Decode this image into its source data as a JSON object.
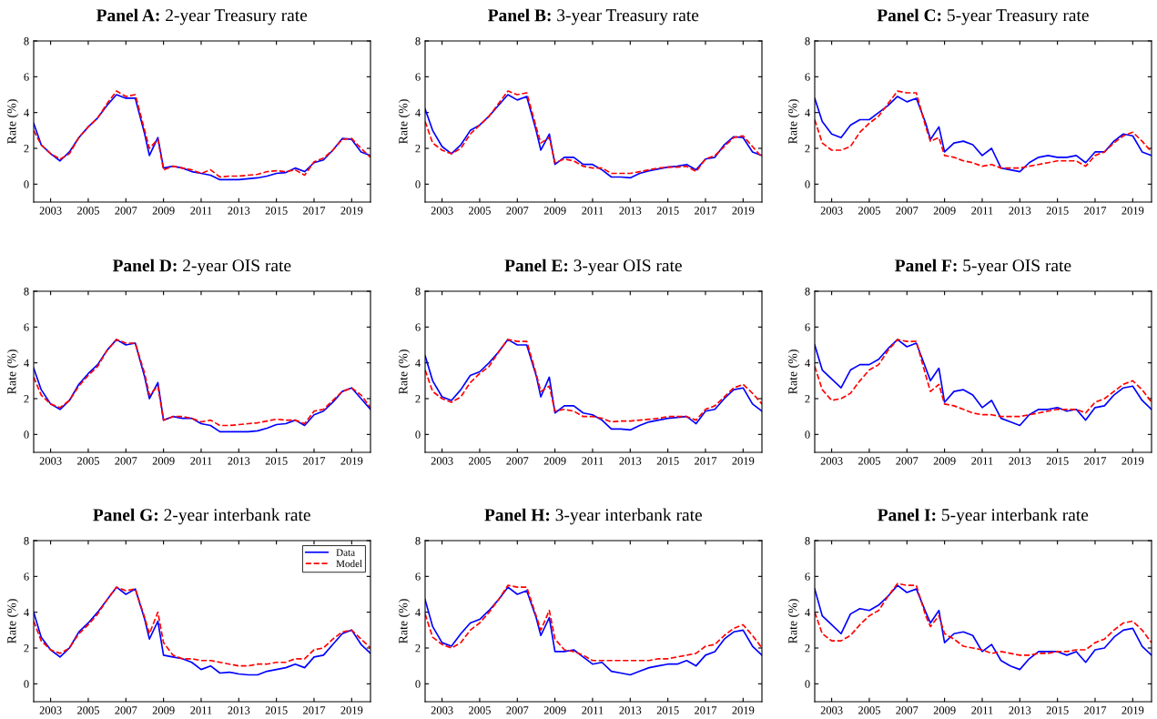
{
  "chart_data": [
    {
      "type": "line",
      "title": "Panel A: 2-year Treasury rate",
      "ylabel": "Rate (%)",
      "xlim": [
        2002.1,
        2020.0
      ],
      "xticks": [
        2003,
        2005,
        2007,
        2009,
        2011,
        2013,
        2015,
        2017,
        2019
      ],
      "ylim": [
        -1,
        8
      ],
      "yticks": [
        0,
        2,
        4,
        6,
        8
      ],
      "grid": false,
      "legend": false,
      "x": [
        2002.1,
        2002.5,
        2003,
        2003.5,
        2004,
        2004.5,
        2005,
        2005.5,
        2006,
        2006.5,
        2007,
        2007.5,
        2008,
        2008.25,
        2008.7,
        2009,
        2009.5,
        2010,
        2010.5,
        2011,
        2011.5,
        2012,
        2012.5,
        2013,
        2013.5,
        2014,
        2014.5,
        2015,
        2015.5,
        2016,
        2016.5,
        2017,
        2017.5,
        2018,
        2018.5,
        2019,
        2019.5,
        2020
      ],
      "series": [
        {
          "color": "#0000ff",
          "line_style": "solid",
          "values": [
            3.4,
            2.2,
            1.7,
            1.3,
            1.8,
            2.6,
            3.2,
            3.7,
            4.4,
            5.0,
            4.8,
            4.8,
            2.8,
            1.6,
            2.6,
            0.9,
            1.0,
            0.9,
            0.7,
            0.6,
            0.5,
            0.25,
            0.25,
            0.25,
            0.3,
            0.35,
            0.45,
            0.6,
            0.65,
            0.9,
            0.7,
            1.2,
            1.35,
            1.9,
            2.55,
            2.5,
            1.8,
            1.6
          ]
        },
        {
          "color": "#ff0000",
          "line_style": "dashed",
          "values": [
            3.0,
            2.2,
            1.7,
            1.4,
            1.7,
            2.6,
            3.2,
            3.7,
            4.5,
            5.2,
            4.9,
            5.0,
            3.0,
            2.0,
            2.5,
            0.8,
            1.0,
            0.9,
            0.8,
            0.6,
            0.8,
            0.4,
            0.45,
            0.45,
            0.5,
            0.55,
            0.7,
            0.75,
            0.7,
            0.8,
            0.5,
            1.25,
            1.45,
            1.9,
            2.5,
            2.55,
            2.0,
            1.5
          ]
        }
      ]
    },
    {
      "type": "line",
      "title": "Panel B: 3-year Treasury rate",
      "ylabel": "Rate (%)",
      "xlim": [
        2002.1,
        2020.0
      ],
      "xticks": [
        2003,
        2005,
        2007,
        2009,
        2011,
        2013,
        2015,
        2017,
        2019
      ],
      "ylim": [
        -1,
        8
      ],
      "yticks": [
        0,
        2,
        4,
        6,
        8
      ],
      "grid": false,
      "legend": false,
      "x": [
        2002.1,
        2002.5,
        2003,
        2003.5,
        2004,
        2004.5,
        2005,
        2005.5,
        2006,
        2006.5,
        2007,
        2007.5,
        2008,
        2008.25,
        2008.7,
        2009,
        2009.5,
        2010,
        2010.5,
        2011,
        2011.5,
        2012,
        2012.5,
        2013,
        2013.5,
        2014,
        2014.5,
        2015,
        2015.5,
        2016,
        2016.5,
        2017,
        2017.5,
        2018,
        2018.5,
        2019,
        2019.5,
        2020
      ],
      "series": [
        {
          "color": "#0000ff",
          "line_style": "solid",
          "values": [
            4.2,
            3.0,
            2.1,
            1.7,
            2.2,
            3.0,
            3.3,
            3.8,
            4.4,
            5.0,
            4.7,
            4.9,
            3.0,
            1.9,
            2.8,
            1.1,
            1.5,
            1.5,
            1.1,
            1.1,
            0.8,
            0.4,
            0.4,
            0.35,
            0.6,
            0.75,
            0.85,
            0.95,
            1.0,
            1.1,
            0.8,
            1.4,
            1.5,
            2.2,
            2.65,
            2.6,
            1.8,
            1.6
          ]
        },
        {
          "color": "#ff0000",
          "line_style": "dashed",
          "values": [
            3.5,
            2.3,
            1.9,
            1.7,
            2.0,
            2.8,
            3.3,
            3.8,
            4.5,
            5.2,
            5.0,
            5.1,
            3.2,
            2.3,
            2.6,
            1.2,
            1.4,
            1.3,
            1.0,
            0.9,
            0.9,
            0.6,
            0.6,
            0.6,
            0.7,
            0.8,
            0.9,
            0.95,
            0.95,
            1.0,
            0.7,
            1.4,
            1.6,
            2.1,
            2.6,
            2.7,
            2.1,
            1.5
          ]
        }
      ]
    },
    {
      "type": "line",
      "title": "Panel C: 5-year Treasury rate",
      "ylabel": "Rate (%)",
      "xlim": [
        2002.1,
        2020.0
      ],
      "xticks": [
        2003,
        2005,
        2007,
        2009,
        2011,
        2013,
        2015,
        2017,
        2019
      ],
      "ylim": [
        -1,
        8
      ],
      "yticks": [
        0,
        2,
        4,
        6,
        8
      ],
      "grid": false,
      "legend": false,
      "x": [
        2002.1,
        2002.5,
        2003,
        2003.5,
        2004,
        2004.5,
        2005,
        2005.5,
        2006,
        2006.5,
        2007,
        2007.5,
        2008,
        2008.25,
        2008.7,
        2009,
        2009.5,
        2010,
        2010.5,
        2011,
        2011.5,
        2012,
        2012.5,
        2013,
        2013.5,
        2014,
        2014.5,
        2015,
        2015.5,
        2016,
        2016.5,
        2017,
        2017.5,
        2018,
        2018.5,
        2019,
        2019.5,
        2020
      ],
      "series": [
        {
          "color": "#0000ff",
          "line_style": "solid",
          "values": [
            4.8,
            3.5,
            2.8,
            2.6,
            3.3,
            3.6,
            3.6,
            4.0,
            4.4,
            4.9,
            4.6,
            4.8,
            3.4,
            2.5,
            3.2,
            1.8,
            2.3,
            2.4,
            2.2,
            1.6,
            2.0,
            0.9,
            0.8,
            0.7,
            1.2,
            1.5,
            1.6,
            1.5,
            1.5,
            1.6,
            1.2,
            1.8,
            1.8,
            2.4,
            2.8,
            2.7,
            1.8,
            1.6
          ]
        },
        {
          "color": "#ff0000",
          "line_style": "dashed",
          "values": [
            3.6,
            2.3,
            1.9,
            1.9,
            2.1,
            2.9,
            3.4,
            3.8,
            4.5,
            5.2,
            5.1,
            5.1,
            3.2,
            2.4,
            2.6,
            1.6,
            1.5,
            1.3,
            1.2,
            1.0,
            1.1,
            0.9,
            0.9,
            0.9,
            1.0,
            1.1,
            1.2,
            1.3,
            1.3,
            1.3,
            1.0,
            1.6,
            1.8,
            2.3,
            2.7,
            2.9,
            2.4,
            1.8
          ]
        }
      ]
    },
    {
      "type": "line",
      "title": "Panel D: 2-year OIS rate",
      "ylabel": "Rate (%)",
      "xlim": [
        2002.1,
        2020.0
      ],
      "xticks": [
        2003,
        2005,
        2007,
        2009,
        2011,
        2013,
        2015,
        2017,
        2019
      ],
      "ylim": [
        -1,
        8
      ],
      "yticks": [
        0,
        2,
        4,
        6,
        8
      ],
      "grid": false,
      "legend": false,
      "x": [
        2002.1,
        2002.5,
        2003,
        2003.5,
        2004,
        2004.5,
        2005,
        2005.5,
        2006,
        2006.5,
        2007,
        2007.5,
        2008,
        2008.25,
        2008.7,
        2009,
        2009.5,
        2010,
        2010.5,
        2011,
        2011.5,
        2012,
        2012.5,
        2013,
        2013.5,
        2014,
        2014.5,
        2015,
        2015.5,
        2016,
        2016.5,
        2017,
        2017.5,
        2018,
        2018.5,
        2019,
        2019.5,
        2020
      ],
      "series": [
        {
          "color": "#0000ff",
          "line_style": "solid",
          "values": [
            3.7,
            2.5,
            1.7,
            1.4,
            1.9,
            2.8,
            3.4,
            3.9,
            4.7,
            5.3,
            5.0,
            5.1,
            3.2,
            2.0,
            2.9,
            0.8,
            1.0,
            0.9,
            0.9,
            0.6,
            0.5,
            0.15,
            0.15,
            0.15,
            0.15,
            0.2,
            0.35,
            0.55,
            0.6,
            0.8,
            0.5,
            1.1,
            1.3,
            1.8,
            2.4,
            2.6,
            2.0,
            1.4
          ]
        },
        {
          "color": "#ff0000",
          "line_style": "dashed",
          "values": [
            3.2,
            2.2,
            1.7,
            1.5,
            1.9,
            2.7,
            3.3,
            3.8,
            4.7,
            5.3,
            5.1,
            5.1,
            3.4,
            2.2,
            2.7,
            0.8,
            1.0,
            1.0,
            0.9,
            0.7,
            0.8,
            0.5,
            0.5,
            0.55,
            0.6,
            0.65,
            0.75,
            0.85,
            0.8,
            0.8,
            0.6,
            1.3,
            1.4,
            1.9,
            2.4,
            2.6,
            2.2,
            1.5
          ]
        }
      ]
    },
    {
      "type": "line",
      "title": "Panel E: 3-year OIS rate",
      "ylabel": "Rate (%)",
      "xlim": [
        2002.1,
        2020.0
      ],
      "xticks": [
        2003,
        2005,
        2007,
        2009,
        2011,
        2013,
        2015,
        2017,
        2019
      ],
      "ylim": [
        -1,
        8
      ],
      "yticks": [
        0,
        2,
        4,
        6,
        8
      ],
      "grid": false,
      "legend": false,
      "x": [
        2002.1,
        2002.5,
        2003,
        2003.5,
        2004,
        2004.5,
        2005,
        2005.5,
        2006,
        2006.5,
        2007,
        2007.5,
        2008,
        2008.25,
        2008.7,
        2009,
        2009.5,
        2010,
        2010.5,
        2011,
        2011.5,
        2012,
        2012.5,
        2013,
        2013.5,
        2014,
        2014.5,
        2015,
        2015.5,
        2016,
        2016.5,
        2017,
        2017.5,
        2018,
        2018.5,
        2019,
        2019.5,
        2020
      ],
      "series": [
        {
          "color": "#0000ff",
          "line_style": "solid",
          "values": [
            4.4,
            3.0,
            2.1,
            1.9,
            2.5,
            3.3,
            3.5,
            4.0,
            4.6,
            5.3,
            5.0,
            5.0,
            3.3,
            2.1,
            3.2,
            1.2,
            1.6,
            1.6,
            1.2,
            1.1,
            0.8,
            0.3,
            0.3,
            0.25,
            0.5,
            0.7,
            0.8,
            0.9,
            0.95,
            1.0,
            0.6,
            1.3,
            1.4,
            2.0,
            2.5,
            2.6,
            1.7,
            1.3
          ]
        },
        {
          "color": "#ff0000",
          "line_style": "dashed",
          "values": [
            3.6,
            2.4,
            2.0,
            1.8,
            2.1,
            2.9,
            3.4,
            3.8,
            4.6,
            5.3,
            5.2,
            5.2,
            3.4,
            2.4,
            2.7,
            1.3,
            1.4,
            1.3,
            1.0,
            1.0,
            0.9,
            0.7,
            0.75,
            0.75,
            0.8,
            0.85,
            0.9,
            1.0,
            1.0,
            1.0,
            0.8,
            1.4,
            1.6,
            2.1,
            2.6,
            2.8,
            2.3,
            1.7
          ]
        }
      ]
    },
    {
      "type": "line",
      "title": "Panel F: 5-year OIS rate",
      "ylabel": "Rate (%)",
      "xlim": [
        2002.1,
        2020.0
      ],
      "xticks": [
        2003,
        2005,
        2007,
        2009,
        2011,
        2013,
        2015,
        2017,
        2019
      ],
      "ylim": [
        -1,
        8
      ],
      "yticks": [
        0,
        2,
        4,
        6,
        8
      ],
      "grid": false,
      "legend": false,
      "x": [
        2002.1,
        2002.5,
        2003,
        2003.5,
        2004,
        2004.5,
        2005,
        2005.5,
        2006,
        2006.5,
        2007,
        2007.5,
        2008,
        2008.25,
        2008.7,
        2009,
        2009.5,
        2010,
        2010.5,
        2011,
        2011.5,
        2012,
        2012.5,
        2013,
        2013.5,
        2014,
        2014.5,
        2015,
        2015.5,
        2016,
        2016.5,
        2017,
        2017.5,
        2018,
        2018.5,
        2019,
        2019.5,
        2020
      ],
      "series": [
        {
          "color": "#0000ff",
          "line_style": "solid",
          "values": [
            5.0,
            3.6,
            3.1,
            2.6,
            3.6,
            3.9,
            3.9,
            4.2,
            4.8,
            5.3,
            4.9,
            5.1,
            3.7,
            3.0,
            3.7,
            1.8,
            2.4,
            2.5,
            2.2,
            1.5,
            1.9,
            0.9,
            0.7,
            0.5,
            1.1,
            1.4,
            1.4,
            1.5,
            1.3,
            1.4,
            0.8,
            1.5,
            1.6,
            2.2,
            2.6,
            2.7,
            1.9,
            1.4
          ]
        },
        {
          "color": "#ff0000",
          "line_style": "dashed",
          "values": [
            3.8,
            2.5,
            1.9,
            2.0,
            2.3,
            3.0,
            3.6,
            3.9,
            4.7,
            5.3,
            5.2,
            5.2,
            3.3,
            2.4,
            2.8,
            1.7,
            1.6,
            1.4,
            1.2,
            1.1,
            1.1,
            1.0,
            1.0,
            1.0,
            1.1,
            1.2,
            1.3,
            1.4,
            1.4,
            1.4,
            1.2,
            1.8,
            2.0,
            2.4,
            2.8,
            3.0,
            2.5,
            1.8
          ]
        }
      ]
    },
    {
      "type": "line",
      "title": "Panel G: 2-year interbank rate",
      "ylabel": "Rate (%)",
      "xlim": [
        2002.1,
        2020.0
      ],
      "xticks": [
        2003,
        2005,
        2007,
        2009,
        2011,
        2013,
        2015,
        2017,
        2019
      ],
      "ylim": [
        -1,
        8
      ],
      "yticks": [
        0,
        2,
        4,
        6,
        8
      ],
      "grid": false,
      "legend": "top right",
      "x": [
        2002.1,
        2002.5,
        2003,
        2003.5,
        2004,
        2004.5,
        2005,
        2005.5,
        2006,
        2006.5,
        2007,
        2007.5,
        2008,
        2008.25,
        2008.7,
        2009,
        2009.5,
        2010,
        2010.5,
        2011,
        2011.5,
        2012,
        2012.5,
        2013,
        2013.5,
        2014,
        2014.5,
        2015,
        2015.5,
        2016,
        2016.5,
        2017,
        2017.5,
        2018,
        2018.5,
        2019,
        2019.5,
        2020
      ],
      "series": [
        {
          "name": "Data",
          "color": "#0000ff",
          "line_style": "solid",
          "values": [
            4.0,
            2.6,
            1.9,
            1.5,
            2.0,
            2.9,
            3.4,
            4.0,
            4.7,
            5.4,
            5.0,
            5.3,
            3.6,
            2.5,
            3.5,
            1.6,
            1.5,
            1.4,
            1.2,
            0.8,
            1.0,
            0.6,
            0.65,
            0.55,
            0.5,
            0.5,
            0.7,
            0.8,
            0.9,
            1.1,
            0.9,
            1.5,
            1.6,
            2.2,
            2.8,
            3.0,
            2.2,
            1.7
          ]
        },
        {
          "name": "Model",
          "color": "#ff0000",
          "line_style": "dashed",
          "values": [
            3.5,
            2.4,
            1.9,
            1.7,
            2.0,
            2.8,
            3.3,
            3.9,
            4.7,
            5.4,
            5.2,
            5.3,
            3.7,
            2.8,
            4.0,
            2.3,
            1.6,
            1.4,
            1.4,
            1.3,
            1.3,
            1.2,
            1.1,
            1.0,
            1.0,
            1.1,
            1.1,
            1.2,
            1.2,
            1.4,
            1.4,
            1.9,
            2.0,
            2.5,
            2.9,
            3.0,
            2.5,
            2.0
          ]
        }
      ]
    },
    {
      "type": "line",
      "title": "Panel H: 3-year interbank rate",
      "ylabel": "Rate (%)",
      "xlim": [
        2002.1,
        2020.0
      ],
      "xticks": [
        2003,
        2005,
        2007,
        2009,
        2011,
        2013,
        2015,
        2017,
        2019
      ],
      "ylim": [
        -1,
        8
      ],
      "yticks": [
        0,
        2,
        4,
        6,
        8
      ],
      "grid": false,
      "legend": false,
      "x": [
        2002.1,
        2002.5,
        2003,
        2003.5,
        2004,
        2004.5,
        2005,
        2005.5,
        2006,
        2006.5,
        2007,
        2007.5,
        2008,
        2008.25,
        2008.7,
        2009,
        2009.5,
        2010,
        2010.5,
        2011,
        2011.5,
        2012,
        2012.5,
        2013,
        2013.5,
        2014,
        2014.5,
        2015,
        2015.5,
        2016,
        2016.5,
        2017,
        2017.5,
        2018,
        2018.5,
        2019,
        2019.5,
        2020
      ],
      "series": [
        {
          "color": "#0000ff",
          "line_style": "solid",
          "values": [
            4.7,
            3.2,
            2.3,
            2.1,
            2.8,
            3.4,
            3.6,
            4.1,
            4.7,
            5.4,
            5.0,
            5.2,
            3.7,
            2.7,
            3.7,
            1.8,
            1.8,
            1.9,
            1.5,
            1.1,
            1.2,
            0.7,
            0.6,
            0.5,
            0.7,
            0.9,
            1.0,
            1.1,
            1.1,
            1.3,
            1.0,
            1.6,
            1.8,
            2.5,
            2.9,
            3.0,
            2.1,
            1.6
          ]
        },
        {
          "color": "#ff0000",
          "line_style": "dashed",
          "values": [
            3.9,
            2.6,
            2.2,
            2.0,
            2.3,
            3.0,
            3.4,
            4.0,
            4.7,
            5.5,
            5.4,
            5.4,
            3.8,
            3.0,
            4.1,
            2.5,
            1.9,
            1.8,
            1.6,
            1.3,
            1.3,
            1.3,
            1.3,
            1.3,
            1.3,
            1.3,
            1.4,
            1.4,
            1.5,
            1.6,
            1.7,
            2.1,
            2.2,
            2.7,
            3.1,
            3.3,
            2.7,
            2.0
          ]
        }
      ]
    },
    {
      "type": "line",
      "title": "Panel I: 5-year interbank rate",
      "ylabel": "Rate (%)",
      "xlim": [
        2002.1,
        2020.0
      ],
      "xticks": [
        2003,
        2005,
        2007,
        2009,
        2011,
        2013,
        2015,
        2017,
        2019
      ],
      "ylim": [
        -1,
        8
      ],
      "yticks": [
        0,
        2,
        4,
        6,
        8
      ],
      "grid": false,
      "legend": false,
      "x": [
        2002.1,
        2002.5,
        2003,
        2003.5,
        2004,
        2004.5,
        2005,
        2005.5,
        2006,
        2006.5,
        2007,
        2007.5,
        2008,
        2008.25,
        2008.7,
        2009,
        2009.5,
        2010,
        2010.5,
        2011,
        2011.5,
        2012,
        2012.5,
        2013,
        2013.5,
        2014,
        2014.5,
        2015,
        2015.5,
        2016,
        2016.5,
        2017,
        2017.5,
        2018,
        2018.5,
        2019,
        2019.5,
        2020
      ],
      "series": [
        {
          "color": "#0000ff",
          "line_style": "solid",
          "values": [
            5.3,
            3.8,
            3.3,
            2.8,
            3.9,
            4.2,
            4.1,
            4.4,
            4.9,
            5.5,
            5.1,
            5.3,
            4.0,
            3.4,
            4.1,
            2.3,
            2.8,
            2.9,
            2.7,
            1.8,
            2.2,
            1.3,
            1.0,
            0.8,
            1.4,
            1.8,
            1.8,
            1.8,
            1.6,
            1.8,
            1.2,
            1.9,
            2.0,
            2.6,
            3.0,
            3.1,
            2.1,
            1.6
          ]
        },
        {
          "color": "#ff0000",
          "line_style": "dashed",
          "values": [
            4.0,
            2.8,
            2.4,
            2.4,
            2.7,
            3.3,
            3.8,
            4.1,
            4.9,
            5.6,
            5.5,
            5.5,
            3.8,
            3.2,
            3.8,
            2.8,
            2.5,
            2.1,
            2.0,
            1.9,
            1.7,
            1.8,
            1.7,
            1.6,
            1.6,
            1.7,
            1.7,
            1.8,
            1.8,
            1.9,
            1.9,
            2.3,
            2.5,
            3.0,
            3.4,
            3.5,
            3.0,
            2.3
          ]
        }
      ]
    }
  ]
}
